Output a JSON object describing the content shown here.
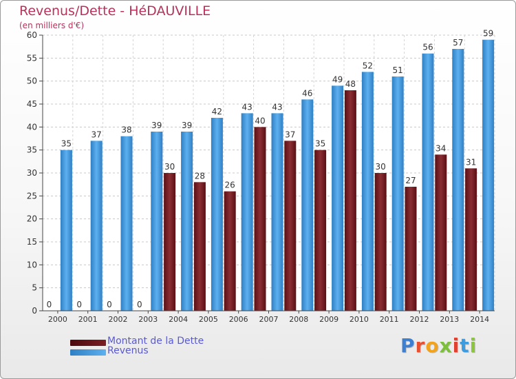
{
  "title": "Revenus/Dette - HéDAUVILLE",
  "subtitle": "(en milliers d'€)",
  "logo_text": "Proxiti",
  "colors": {
    "debt": "#7a1e24",
    "revenue": "#3d9be0",
    "title": "#b5325a",
    "legend_text": "#5a5ad0"
  },
  "chart_data": {
    "type": "bar",
    "title": "Revenus/Dette - HéDAUVILLE",
    "subtitle": "(en milliers d'€)",
    "categories": [
      "2000",
      "2001",
      "2002",
      "2003",
      "2004",
      "2005",
      "2006",
      "2007",
      "2008",
      "2009",
      "2010",
      "2011",
      "2012",
      "2013",
      "2014"
    ],
    "series": [
      {
        "name": "Montant de la Dette",
        "values": [
          0,
          0,
          0,
          0,
          30,
          28,
          26,
          40,
          37,
          35,
          48,
          30,
          27,
          34,
          31
        ]
      },
      {
        "name": "Revenus",
        "values": [
          35,
          37,
          38,
          39,
          39,
          42,
          43,
          43,
          46,
          49,
          52,
          51,
          56,
          57,
          59
        ]
      }
    ],
    "yticks": [
      0,
      5,
      10,
      15,
      20,
      25,
      30,
      35,
      40,
      45,
      50,
      55,
      60
    ],
    "ylim": [
      0,
      60
    ],
    "grid": true,
    "legend": "bottom-left"
  }
}
